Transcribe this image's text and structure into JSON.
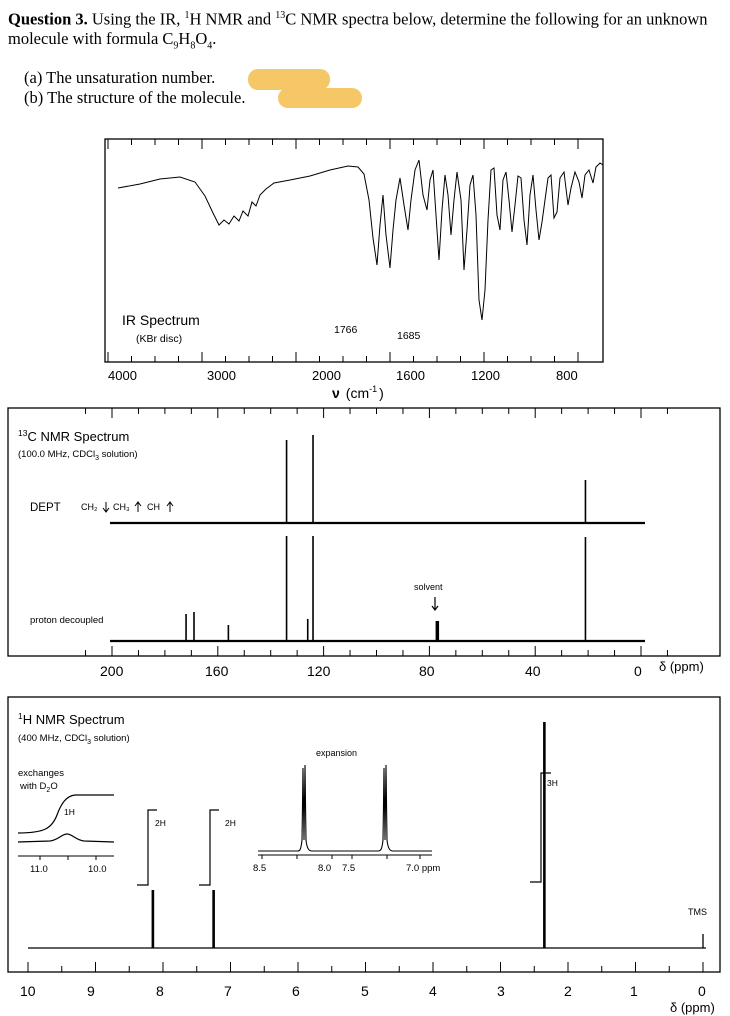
{
  "question": {
    "label": "Question 3.",
    "text_before_h": " Using the IR, ",
    "sup_1": "1",
    "text_h_nmr": "H NMR and ",
    "sup_13": "13",
    "text_after": "C NMR spectra below, determine the following for an unknown molecule with formula C",
    "sub_9": "9",
    "h": "H",
    "sub_8": "8",
    "o": "O",
    "sub_4": "4",
    "end": "."
  },
  "parts": {
    "a": "(a) The unsaturation number.",
    "b": "(b) The structure of the molecule."
  },
  "highlight_color": "#f6c766",
  "ir": {
    "title": "IR Spectrum",
    "subtitle": "(KBr disc)",
    "peak_labels": [
      "1766",
      "1685"
    ],
    "ticks": [
      "4000",
      "3000",
      "2000",
      "1600",
      "1200",
      "800"
    ],
    "xlabel_nu": "ν",
    "xlabel_unit_open": "(cm",
    "xlabel_sup": "-1",
    "xlabel_close": ")"
  },
  "c13": {
    "title_sup": "13",
    "title": "C NMR Spectrum",
    "subtitle": "(100.0 MHz, CDCl",
    "subtitle_sub": "3",
    "subtitle_end": " solution)",
    "dept_label": "DEPT",
    "dept_ch2": "CH₂",
    "dept_ch3": "CH₃",
    "dept_ch": "CH",
    "proton_decoupled": "proton decoupled",
    "solvent": "solvent",
    "ticks": [
      "200",
      "160",
      "120",
      "80",
      "40",
      "0"
    ],
    "axis_label": "δ (ppm)"
  },
  "h1": {
    "title_sup": "1",
    "title": "H NMR Spectrum",
    "subtitle": "(400 MHz, CDCl",
    "subtitle_sub": "3",
    "subtitle_end": " solution)",
    "exchanges": "exchanges",
    "with_d2o": "with D",
    "d2o_sub": "2",
    "d2o_end": "O",
    "inset_1h": "1H",
    "inset_ticks": [
      "11.0",
      "10.0"
    ],
    "int_2h_a": "2H",
    "int_2h_b": "2H",
    "int_3h": "3H",
    "expansion": "expansion",
    "exp_ticks": [
      "8.5",
      "8.0",
      "7.5",
      "7.0 ppm"
    ],
    "tms": "TMS",
    "ticks": [
      "10",
      "9",
      "8",
      "7",
      "6",
      "5",
      "4",
      "3",
      "2",
      "1",
      "0"
    ],
    "axis_label": "δ (ppm)"
  },
  "chart_data": [
    {
      "type": "line",
      "title": "IR Spectrum",
      "subtitle": "(KBr disc)",
      "xlabel": "ν (cm-1)",
      "x_ticks": [
        4000,
        3000,
        2000,
        1600,
        1200,
        800
      ],
      "annotated_peaks": [
        1766,
        1685
      ]
    },
    {
      "type": "bar",
      "title": "13C NMR Spectrum",
      "subtitle": "(100.0 MHz, CDCl3 solution)",
      "xlabel": "δ (ppm)",
      "xlim": [
        200,
        0
      ],
      "proton_decoupled_shifts_ppm": [
        172,
        169,
        156,
        134,
        126,
        124,
        77,
        21
      ],
      "dept_peaks_ppm": [
        134,
        124,
        21
      ],
      "solvent_ppm": 77
    },
    {
      "type": "bar",
      "title": "1H NMR Spectrum",
      "subtitle": "(400 MHz, CDCl3 solution)",
      "xlabel": "δ (ppm)",
      "xlim": [
        10,
        0
      ],
      "signals": [
        {
          "shift_ppm": 10.7,
          "integration": "1H",
          "note": "exchanges with D2O"
        },
        {
          "shift_ppm": 8.15,
          "integration": "2H"
        },
        {
          "shift_ppm": 7.25,
          "integration": "2H"
        },
        {
          "shift_ppm": 2.35,
          "integration": "3H"
        },
        {
          "shift_ppm": 0.0,
          "integration": "",
          "note": "TMS"
        }
      ]
    }
  ]
}
